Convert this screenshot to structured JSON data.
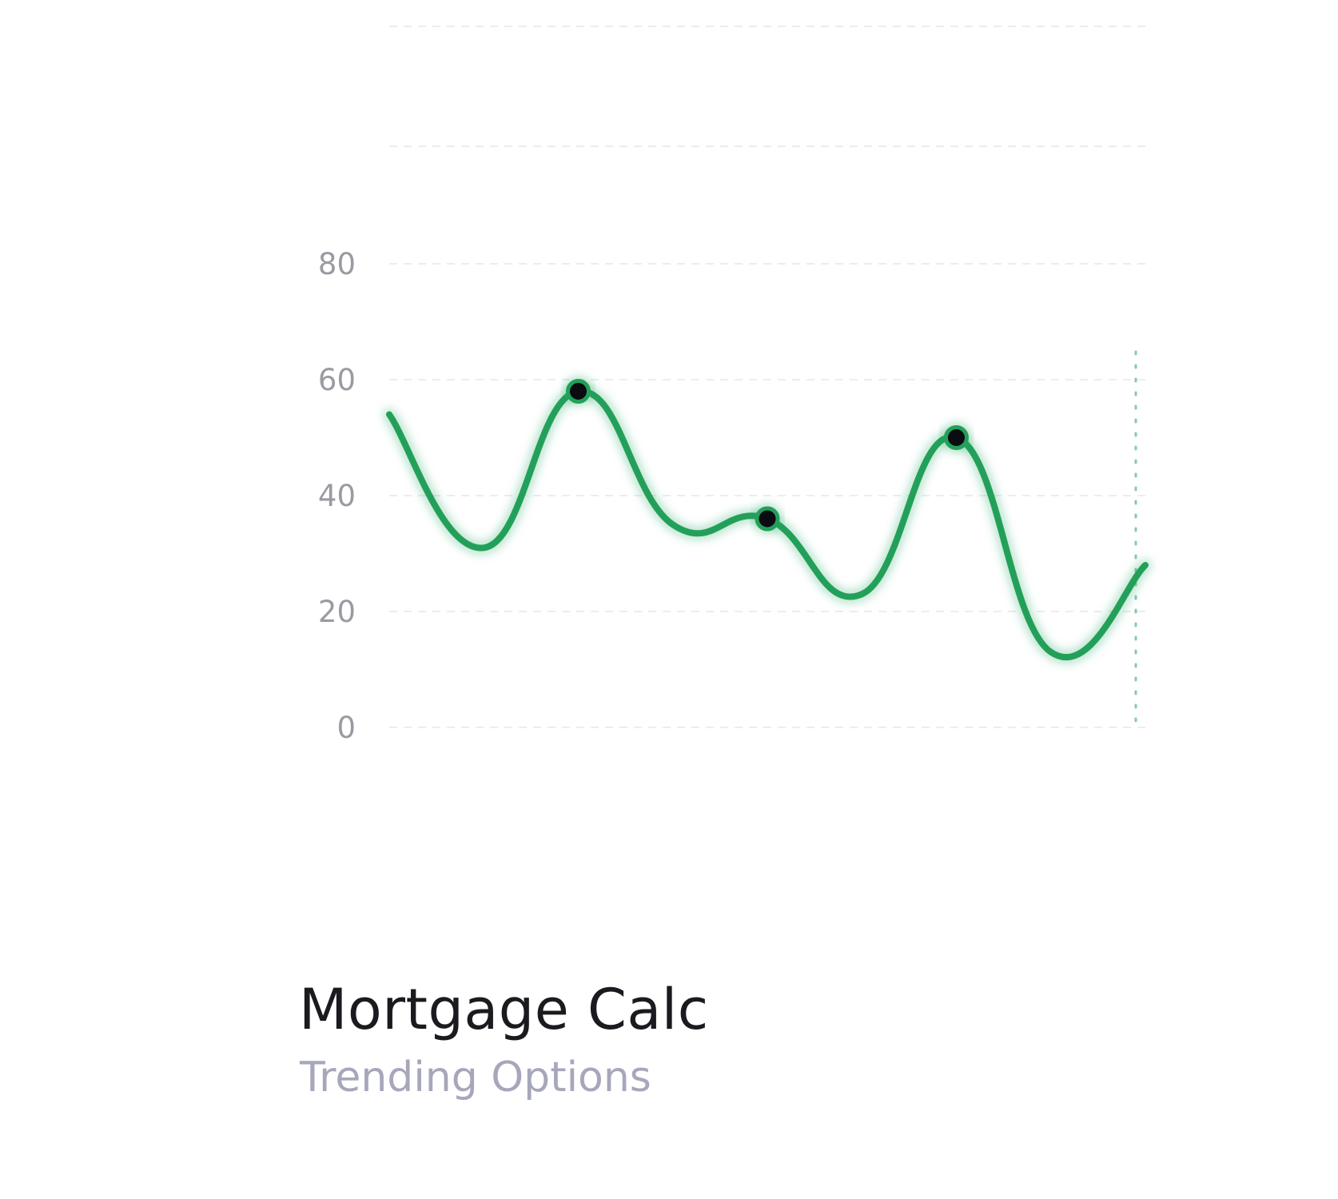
{
  "card": {
    "title": "Mortgage Calc",
    "subtitle": "Trending Options"
  },
  "chart_data": {
    "type": "line",
    "title": "",
    "xlabel": "",
    "ylabel": "",
    "ylim": [
      0,
      80
    ],
    "yticks": [
      0,
      20,
      40,
      60,
      80
    ],
    "grid": true,
    "legend": "none",
    "series": [
      {
        "color": "#22a05a",
        "smooth": true,
        "x": [
          0,
          1,
          2,
          3,
          4,
          5,
          6,
          7,
          8
        ],
        "values": [
          54,
          31,
          58,
          35,
          36,
          23,
          50,
          13,
          28
        ]
      }
    ],
    "highlighted_points": [
      {
        "x": 2,
        "y": 58
      },
      {
        "x": 4,
        "y": 36
      },
      {
        "x": 6,
        "y": 50
      }
    ],
    "marker_color": "#0b0b12",
    "cursor_line_x": 8,
    "grid_color": "#ececf0"
  }
}
